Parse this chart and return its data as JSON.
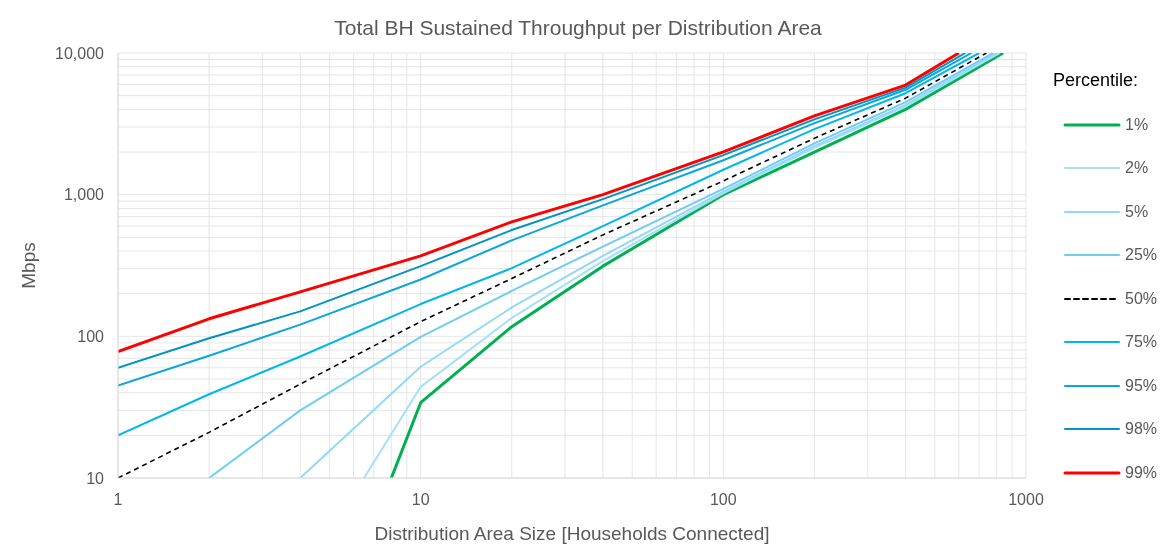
{
  "chart_data": {
    "type": "line",
    "title": "Total BH Sustained Throughput per Distribution Area",
    "xlabel": "Distribution Area Size [Households Connected]",
    "ylabel": "Mbps",
    "legend_title": "Percentile:",
    "log": "xy",
    "grid": true,
    "legend": "right",
    "line_style": "solid",
    "marker": "none",
    "xlim": [
      1,
      1000
    ],
    "xticks": [
      1,
      {
        "value": 2,
        "label": null
      },
      {
        "value": 3,
        "label": null
      },
      {
        "value": 4,
        "label": null
      },
      {
        "value": 5,
        "label": null
      },
      {
        "value": 6,
        "label": null
      },
      {
        "value": 7,
        "label": null
      },
      {
        "value": 8,
        "label": null
      },
      {
        "value": 9,
        "label": null
      },
      10,
      {
        "value": 20,
        "label": null
      },
      {
        "value": 30,
        "label": null
      },
      {
        "value": 40,
        "label": null
      },
      {
        "value": 50,
        "label": null
      },
      {
        "value": 60,
        "label": null
      },
      {
        "value": 70,
        "label": null
      },
      {
        "value": 80,
        "label": null
      },
      {
        "value": 90,
        "label": null
      },
      100,
      {
        "value": 200,
        "label": null
      },
      {
        "value": 300,
        "label": null
      },
      {
        "value": 400,
        "label": null
      },
      {
        "value": 500,
        "label": null
      },
      {
        "value": 600,
        "label": null
      },
      {
        "value": 700,
        "label": null
      },
      {
        "value": 800,
        "label": null
      },
      {
        "value": 900,
        "label": null
      },
      1000
    ],
    "ylim": [
      10,
      10000
    ],
    "yticks": [
      10,
      {
        "value": 20,
        "label": null
      },
      {
        "value": 30,
        "label": null
      },
      {
        "value": 40,
        "label": null
      },
      {
        "value": 50,
        "label": null
      },
      {
        "value": 60,
        "label": null
      },
      {
        "value": 70,
        "label": null
      },
      {
        "value": 80,
        "label": null
      },
      {
        "value": 90,
        "label": null
      },
      100,
      {
        "value": 200,
        "label": null
      },
      {
        "value": 300,
        "label": null
      },
      {
        "value": 400,
        "label": null
      },
      {
        "value": 500,
        "label": null
      },
      {
        "value": 600,
        "label": null
      },
      {
        "value": 700,
        "label": null
      },
      {
        "value": 800,
        "label": null
      },
      {
        "value": 900,
        "label": null
      },
      {
        "value": 1000,
        "label": "1,000"
      },
      {
        "value": 2000,
        "label": null
      },
      {
        "value": 3000,
        "label": null
      },
      {
        "value": 4000,
        "label": null
      },
      {
        "value": 5000,
        "label": null
      },
      {
        "value": 6000,
        "label": null
      },
      {
        "value": 7000,
        "label": null
      },
      {
        "value": 8000,
        "label": null
      },
      {
        "value": 9000,
        "label": null
      },
      {
        "value": 10000,
        "label": "10,000"
      }
    ],
    "series": [
      {
        "name": "1%",
        "color": "#00b050",
        "x": [
          8,
          10,
          20,
          40,
          100,
          200,
          400,
          840
        ],
        "values": [
          10,
          34,
          117,
          313,
          1000,
          2000,
          4000,
          10000
        ]
      },
      {
        "name": "2%",
        "color": "#a6dffc",
        "x": [
          6.5,
          10,
          20,
          40,
          100,
          200,
          400,
          820
        ],
        "values": [
          10,
          44,
          135,
          340,
          1020,
          2150,
          4200,
          10000
        ]
      },
      {
        "name": "5%",
        "color": "#92d9f8",
        "x": [
          4,
          10,
          20,
          40,
          100,
          200,
          400,
          800
        ],
        "values": [
          10,
          61,
          160,
          370,
          1050,
          2200,
          4300,
          10000
        ]
      },
      {
        "name": "25%",
        "color": "#6fcdf3",
        "x": [
          2,
          4,
          10,
          20,
          40,
          100,
          200,
          400,
          780
        ],
        "values": [
          10,
          30,
          99,
          209,
          430,
          1100,
          2300,
          4500,
          10000
        ]
      },
      {
        "name": "50%",
        "color": "#000000",
        "line_style": "dashed",
        "x": [
          1,
          2,
          4,
          10,
          20,
          40,
          100,
          200,
          400,
          740
        ],
        "values": [
          10,
          21,
          46,
          127,
          256,
          520,
          1250,
          2500,
          4800,
          10000
        ]
      },
      {
        "name": "75%",
        "color": "#00b6ef",
        "x": [
          1,
          2,
          4,
          10,
          20,
          40,
          100,
          200,
          400,
          700
        ],
        "values": [
          20,
          39,
          72,
          169,
          303,
          600,
          1500,
          2900,
          5200,
          10000
        ]
      },
      {
        "name": "95%",
        "color": "#0aa6dc",
        "x": [
          1,
          2,
          4,
          10,
          20,
          40,
          100,
          200,
          400,
          660
        ],
        "values": [
          45,
          73,
          121,
          252,
          476,
          840,
          1750,
          3200,
          5500,
          10000
        ]
      },
      {
        "name": "98%",
        "color": "#0094c4",
        "x": [
          1,
          2,
          4,
          10,
          20,
          40,
          100,
          200,
          400,
          630
        ],
        "values": [
          60,
          97,
          150,
          313,
          563,
          930,
          1900,
          3400,
          5700,
          10000
        ]
      },
      {
        "name": "99%",
        "color": "#ff0000",
        "x": [
          1,
          2,
          4,
          10,
          20,
          40,
          100,
          200,
          400,
          600
        ],
        "values": [
          78,
          133,
          206,
          370,
          643,
          1000,
          2005,
          3600,
          5940,
          10000
        ]
      }
    ]
  }
}
